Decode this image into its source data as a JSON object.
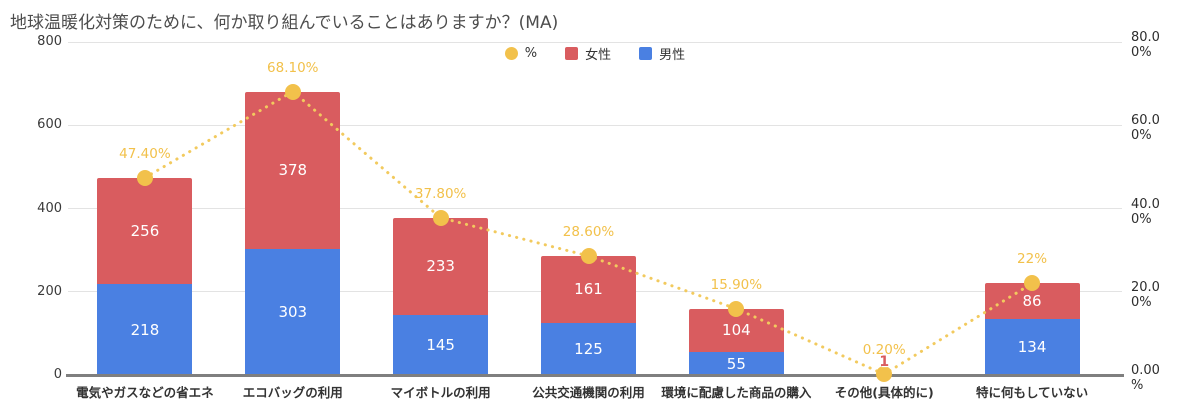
{
  "title": "地球温暖化対策のために、何か取り組んでいることはありますか？(MA)",
  "legend": [
    {
      "label": "%",
      "shape": "circle",
      "color": "#F2C14B"
    },
    {
      "label": "女性",
      "shape": "square",
      "color": "#D95C5F"
    },
    {
      "label": "男性",
      "shape": "square",
      "color": "#4A80E2"
    }
  ],
  "chart_data": {
    "type": "bar",
    "subtype": "stacked-bar-with-line",
    "title": "地球温暖化対策のために、何か取り組んでいることはありますか？(MA)",
    "categories": [
      "電気やガスなどの省エネ",
      "エコバッグの利用",
      "マイボトルの利用",
      "公共交通機関の利用",
      "環境に配慮した商品の購入",
      "その他(具体的に)",
      "特に何もしていない"
    ],
    "series": [
      {
        "name": "男性",
        "type": "bar",
        "color": "#4A80E2",
        "values": [
          218,
          303,
          145,
          125,
          55,
          1,
          134
        ]
      },
      {
        "name": "女性",
        "type": "bar",
        "color": "#D95C5F",
        "values": [
          256,
          378,
          233,
          161,
          104,
          1,
          86
        ]
      },
      {
        "name": "%",
        "type": "line",
        "axis": "right",
        "color": "#F2C14B",
        "line_color": "#F2CA5E",
        "values": [
          47.4,
          68.1,
          37.8,
          28.6,
          15.9,
          0.2,
          22
        ],
        "labels": [
          "47.40%",
          "68.10%",
          "37.80%",
          "28.60%",
          "15.90%",
          "0.20%",
          "22%"
        ]
      }
    ],
    "left_axis": {
      "range": [
        0,
        800
      ],
      "ticks": [
        0,
        200,
        400,
        600,
        800
      ],
      "tick_labels": [
        "0",
        "200",
        "400",
        "600",
        "800"
      ]
    },
    "right_axis": {
      "range": [
        0,
        80
      ],
      "ticks": [
        0,
        20,
        40,
        60,
        80
      ],
      "tick_labels": [
        "0.00\n%",
        "20.0\n0%",
        "40.0\n0%",
        "60.0\n0%",
        "80.0\n0%"
      ]
    },
    "grid": true,
    "legend_position": "top-center",
    "small_bar_colors": {
      "男性": "#A9CBF6",
      "女性": "#F0BEBF"
    }
  }
}
